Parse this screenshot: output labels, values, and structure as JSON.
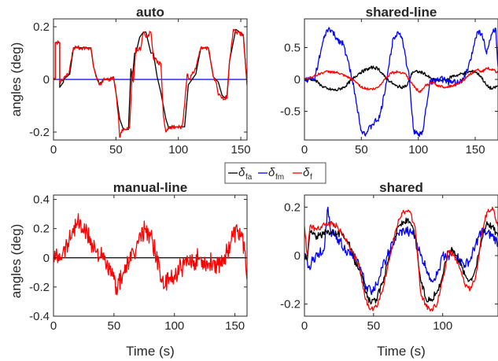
{
  "figure": {
    "ylabel": "angles (deg)",
    "xlabel": "Time (s)"
  },
  "legend": {
    "placement": "center",
    "entries": [
      {
        "symbol": "δ",
        "sub": "fa",
        "color": "#000000"
      },
      {
        "symbol": "δ",
        "sub": "fm",
        "color": "#0000ff"
      },
      {
        "symbol": "δ",
        "sub": "f",
        "color": "#ff0000"
      }
    ]
  },
  "chart_data": [
    {
      "type": "line",
      "title": "auto",
      "ylabel": "angles (deg)",
      "xlabel": "",
      "xlim": [
        0,
        155
      ],
      "ylim": [
        -0.23,
        0.23
      ],
      "xticks": [
        0,
        50,
        100,
        150
      ],
      "yticks": [
        -0.2,
        0,
        0.2
      ],
      "ytick_labels": [
        "-0.2",
        "0",
        "0.2"
      ],
      "series": [
        {
          "color": "#0000ff",
          "noise": 0,
          "x": [
            0,
            155
          ],
          "y": [
            0,
            0
          ]
        },
        {
          "color": "#000000",
          "noise": 0,
          "x": [
            0,
            1.5,
            1.5,
            5,
            5,
            8,
            8,
            13,
            16,
            30,
            32,
            35,
            37,
            40,
            44,
            48,
            50,
            53,
            56,
            60,
            62,
            63,
            65,
            66,
            69,
            72,
            74,
            78,
            80,
            83,
            86,
            90,
            92,
            98,
            100,
            105,
            108,
            111,
            114,
            118,
            124,
            128,
            132,
            135,
            137,
            139,
            141,
            146,
            152,
            155
          ],
          "y": [
            0,
            0,
            0.14,
            0.14,
            -0.03,
            -0.01,
            0,
            0.02,
            0.12,
            0.12,
            0.05,
            0,
            -0.02,
            0,
            0,
            0.01,
            -0.05,
            -0.15,
            -0.19,
            -0.19,
            0.04,
            -0.005,
            0.1,
            0.1,
            0.16,
            0.18,
            0.18,
            0.1,
            0.1,
            0.01,
            -0.05,
            -0.15,
            -0.18,
            -0.18,
            -0.18,
            -0.18,
            -0.02,
            0,
            0.02,
            0.12,
            0.12,
            0.01,
            -0.01,
            -0.06,
            -0.07,
            -0.06,
            0.07,
            0.19,
            0.17,
            -0.02
          ]
        },
        {
          "color": "#ff0000",
          "noise": 0.008,
          "x": [
            0,
            1.5,
            1.5,
            5,
            5,
            8,
            12,
            16,
            30,
            32,
            35,
            37,
            40,
            44,
            48,
            50,
            52,
            53,
            55,
            58,
            61,
            63,
            64,
            66,
            68,
            70,
            72,
            74,
            76,
            78,
            80,
            82,
            84,
            86,
            88,
            90,
            92,
            98,
            103,
            105,
            107,
            109,
            111,
            114,
            118,
            124,
            128,
            130,
            132,
            135,
            139,
            141,
            144,
            146,
            152,
            155
          ],
          "y": [
            0,
            0,
            0.14,
            0.14,
            -0.01,
            0,
            0.02,
            0.12,
            0.12,
            0.05,
            0,
            -0.02,
            0,
            0,
            0.01,
            -0.05,
            -0.14,
            -0.22,
            -0.19,
            -0.19,
            -0.18,
            0.03,
            -0.01,
            0.12,
            0.11,
            0.12,
            0.18,
            0.16,
            0.17,
            0.18,
            0.08,
            0.08,
            0.06,
            0.06,
            -0.14,
            -0.2,
            -0.18,
            -0.18,
            -0.18,
            -0.1,
            0.02,
            0,
            0.02,
            0.04,
            0.12,
            0.12,
            0.01,
            -0.01,
            -0.06,
            -0.07,
            -0.07,
            0.07,
            0.19,
            0.18,
            0.17,
            -0.02
          ]
        }
      ]
    },
    {
      "type": "line",
      "title": "shared-line",
      "ylabel": "",
      "xlabel": "",
      "xlim": [
        0,
        170
      ],
      "ylim": [
        -0.95,
        0.95
      ],
      "xticks": [
        0,
        50,
        100,
        150
      ],
      "yticks": [
        -0.5,
        0,
        0.5
      ],
      "ytick_labels": [
        "-0.5",
        "0",
        "0.5"
      ],
      "series": [
        {
          "color": "#000000",
          "noise": 0.025,
          "x": [
            0,
            8,
            12,
            15,
            20,
            28,
            35,
            42,
            48,
            55,
            60,
            65,
            70,
            75,
            80,
            85,
            90,
            95,
            100,
            105,
            108,
            112,
            118,
            125,
            130,
            135,
            140,
            145,
            150,
            155,
            160,
            165,
            170
          ],
          "y": [
            0,
            0,
            -0.05,
            -0.1,
            -0.15,
            -0.17,
            -0.12,
            0,
            0.1,
            0.16,
            0.19,
            0.17,
            0.05,
            -0.03,
            -0.1,
            -0.12,
            -0.1,
            0.12,
            0.12,
            0.1,
            0.05,
            0,
            -0.02,
            0,
            0.05,
            0.07,
            0.1,
            0.12,
            0.12,
            0.05,
            -0.1,
            -0.15,
            -0.1
          ]
        },
        {
          "color": "#0000ff",
          "noise": 0.05,
          "x": [
            0,
            8,
            10,
            14,
            18,
            22,
            28,
            34,
            38,
            42,
            46,
            50,
            54,
            60,
            66,
            70,
            74,
            78,
            82,
            86,
            90,
            92,
            94,
            96,
            100,
            104,
            106,
            110,
            116,
            122,
            128,
            134,
            140,
            146,
            150,
            152,
            156,
            160,
            164,
            168,
            170
          ],
          "y": [
            0,
            0,
            0.1,
            0.4,
            0.7,
            0.8,
            0.65,
            0.55,
            0.3,
            0,
            -0.4,
            -0.8,
            -0.85,
            -0.7,
            -0.6,
            -0.25,
            0.2,
            0.65,
            0.75,
            0.65,
            0.2,
            0.05,
            -0.45,
            -0.8,
            -0.88,
            -0.82,
            -0.55,
            -0.05,
            0,
            0,
            -0.05,
            -0.05,
            0,
            0.3,
            0.65,
            0.75,
            0.72,
            0.4,
            0.7,
            0.8,
            0.2
          ]
        },
        {
          "color": "#ff0000",
          "noise": 0.02,
          "x": [
            0,
            8,
            12,
            18,
            24,
            30,
            36,
            42,
            46,
            50,
            56,
            62,
            66,
            70,
            76,
            82,
            88,
            94,
            98,
            102,
            106,
            112,
            118,
            124,
            130,
            136,
            142,
            148,
            152,
            156,
            160,
            166,
            170
          ],
          "y": [
            0,
            0.05,
            0.08,
            0.12,
            0.12,
            0.1,
            0.05,
            0,
            -0.05,
            -0.12,
            -0.15,
            -0.15,
            -0.1,
            0,
            0.1,
            0.12,
            0.1,
            -0.05,
            -0.15,
            -0.2,
            -0.1,
            -0.05,
            -0.1,
            -0.12,
            -0.1,
            -0.05,
            0.02,
            0.12,
            0.15,
            0.12,
            0.18,
            0.15,
            0.1
          ]
        }
      ]
    },
    {
      "type": "line",
      "title": "manual-line",
      "ylabel": "angles (deg)",
      "xlabel": "Time (s)",
      "xlim": [
        0,
        160
      ],
      "ylim": [
        -0.4,
        0.43
      ],
      "xticks": [
        0,
        50,
        100,
        150
      ],
      "yticks": [
        -0.4,
        -0.2,
        0,
        0.2,
        0.4
      ],
      "ytick_labels": [
        "-0.4",
        "-0.2",
        "0",
        "0.2",
        "0.4"
      ],
      "series": [
        {
          "color": "#000000",
          "noise": 0,
          "x": [
            0,
            160
          ],
          "y": [
            0,
            0
          ]
        },
        {
          "color": "#ff0000",
          "noise": 0.07,
          "x": [
            0,
            4,
            8,
            12,
            16,
            20,
            24,
            28,
            32,
            36,
            40,
            44,
            48,
            52,
            56,
            60,
            64,
            68,
            72,
            76,
            80,
            84,
            88,
            92,
            96,
            100,
            104,
            108,
            112,
            116,
            120,
            124,
            128,
            132,
            136,
            140,
            144,
            148,
            152,
            156,
            158,
            160
          ],
          "y": [
            0,
            0.02,
            0.05,
            0.1,
            0.2,
            0.25,
            0.2,
            0.16,
            0.1,
            0.05,
            0,
            -0.05,
            -0.12,
            -0.2,
            -0.15,
            -0.05,
            -0.02,
            0.05,
            0.15,
            0.2,
            0.15,
            0.05,
            -0.1,
            -0.2,
            -0.15,
            -0.12,
            -0.08,
            -0.05,
            -0.05,
            -0.02,
            0,
            -0.02,
            -0.04,
            -0.02,
            -0.05,
            0,
            0.05,
            0.15,
            0.18,
            0.15,
            0.05,
            -0.15
          ]
        }
      ]
    },
    {
      "type": "line",
      "title": "shared",
      "ylabel": "",
      "xlabel": "Time (s)",
      "xlim": [
        0,
        140
      ],
      "ylim": [
        -0.25,
        0.25
      ],
      "xticks": [
        0,
        50,
        100
      ],
      "yticks": [
        -0.2,
        0,
        0.2
      ],
      "ytick_labels": [
        "-0.2",
        "0",
        "0.2"
      ],
      "series": [
        {
          "color": "#0000ff",
          "noise": 0.02,
          "x": [
            0,
            3,
            6,
            10,
            14,
            17,
            19,
            22,
            26,
            30,
            34,
            38,
            41,
            44,
            48,
            52,
            56,
            60,
            64,
            68,
            72,
            76,
            80,
            84,
            88,
            92,
            96,
            100,
            104,
            108,
            112,
            116,
            120,
            124,
            128,
            132,
            136,
            140
          ],
          "y": [
            0,
            -0.05,
            -0.02,
            0.01,
            0.02,
            0.2,
            0.1,
            0.08,
            0.06,
            0.02,
            0,
            -0.02,
            -0.06,
            -0.12,
            -0.15,
            -0.12,
            -0.05,
            0,
            0.05,
            0.09,
            0.1,
            0.1,
            0.08,
            0,
            -0.05,
            -0.1,
            -0.08,
            0,
            0,
            0.02,
            -0.02,
            -0.04,
            -0.02,
            0.05,
            0.1,
            0.09,
            0.08,
            0.05
          ]
        },
        {
          "color": "#000000",
          "noise": 0.015,
          "x": [
            0,
            2,
            4,
            8,
            12,
            16,
            20,
            24,
            28,
            32,
            36,
            40,
            44,
            48,
            52,
            56,
            60,
            64,
            68,
            72,
            76,
            80,
            84,
            88,
            92,
            96,
            100,
            104,
            108,
            112,
            116,
            120,
            124,
            128,
            132,
            136,
            140
          ],
          "y": [
            0,
            -0.02,
            0.1,
            0.08,
            0.08,
            0.1,
            0.1,
            0.09,
            0.09,
            0.05,
            -0.02,
            -0.05,
            -0.15,
            -0.2,
            -0.18,
            -0.12,
            -0.03,
            0.05,
            0.12,
            0.14,
            0.14,
            0.08,
            -0.1,
            -0.18,
            -0.18,
            -0.15,
            -0.08,
            0.02,
            0.02,
            -0.02,
            -0.08,
            -0.1,
            -0.05,
            0.06,
            0.14,
            0.12,
            0.08
          ]
        },
        {
          "color": "#ff0000",
          "noise": 0.012,
          "x": [
            0,
            2,
            4,
            8,
            12,
            16,
            20,
            24,
            28,
            32,
            36,
            40,
            44,
            48,
            52,
            56,
            60,
            64,
            68,
            72,
            76,
            80,
            84,
            88,
            92,
            96,
            100,
            104,
            108,
            112,
            116,
            120,
            124,
            128,
            132,
            136,
            140
          ],
          "y": [
            0.12,
            0,
            0.12,
            0.11,
            0.12,
            0.13,
            0.13,
            0.12,
            0.08,
            0.05,
            0,
            -0.05,
            -0.18,
            -0.22,
            -0.21,
            -0.15,
            -0.05,
            0.05,
            0.15,
            0.18,
            0.18,
            0.12,
            -0.15,
            -0.21,
            -0.22,
            -0.2,
            -0.1,
            0.02,
            0,
            -0.05,
            -0.12,
            -0.14,
            -0.08,
            0.08,
            0.18,
            0.2,
            0.12
          ]
        }
      ]
    }
  ]
}
